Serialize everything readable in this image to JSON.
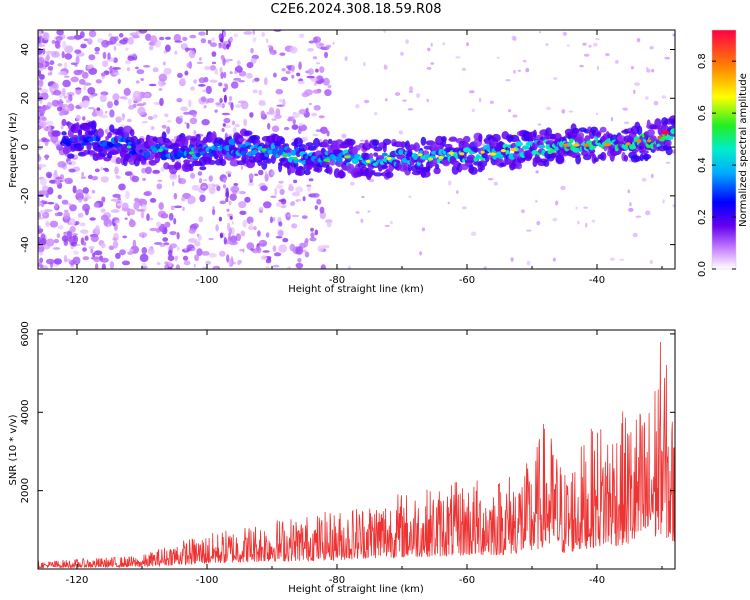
{
  "title": "C2E6.2024.308.18.59.R08",
  "chart_data": [
    {
      "type": "heatmap",
      "xlabel": "Height of straight line (km)",
      "ylabel": "Frequency (Hz)",
      "xlim": [
        -126,
        -28
      ],
      "ylim": [
        -50,
        48
      ],
      "xticks": [
        "-120",
        "-100",
        "-80",
        "-60",
        "-40"
      ],
      "yticks": [
        "-40",
        "-20",
        "0",
        "20",
        "40"
      ],
      "colorbar": {
        "label": "Normalized spectral amplitude",
        "range": [
          0,
          0.92
        ],
        "ticks": [
          "0.0",
          "0.2",
          "0.4",
          "0.6",
          "0.8"
        ]
      },
      "ridge": {
        "x": [
          -126,
          -115,
          -105,
          -95,
          -85,
          -75,
          -65,
          -55,
          -45,
          -35,
          -30,
          -28
        ],
        "frequency_hz": [
          4,
          2,
          -3,
          0,
          -4,
          -5,
          -4,
          -2,
          1,
          2,
          3,
          6
        ]
      }
    },
    {
      "type": "line",
      "xlabel": "Height of straight line (km)",
      "ylabel": "SNR (10 * v/v)",
      "xlim": [
        -126,
        -28
      ],
      "ylim": [
        0,
        6100
      ],
      "xticks": [
        "-120",
        "-100",
        "-80",
        "-60",
        "-40"
      ],
      "yticks": [
        "2000",
        "4000",
        "6000"
      ],
      "color": "#ee3333",
      "envelope": {
        "x": [
          -126,
          -110,
          -105,
          -100,
          -95,
          -90,
          -85,
          -80,
          -75,
          -70,
          -65,
          -60,
          -55,
          -50,
          -48,
          -45,
          -40,
          -35,
          -32,
          -30,
          -28
        ],
        "y": [
          200,
          350,
          700,
          900,
          1100,
          1300,
          1400,
          1500,
          1800,
          2000,
          2100,
          2300,
          2400,
          2800,
          3900,
          2600,
          3800,
          4100,
          4300,
          6100,
          3700
        ]
      }
    }
  ]
}
